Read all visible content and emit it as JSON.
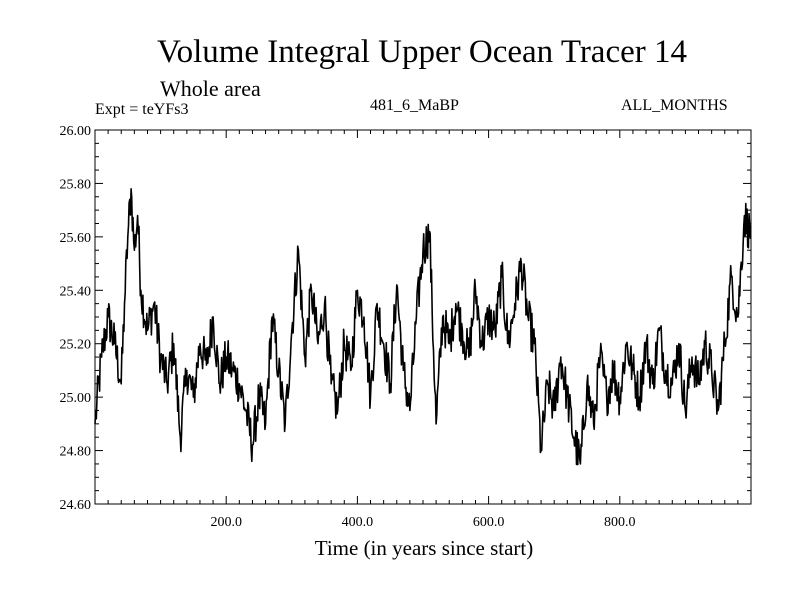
{
  "chart_data": {
    "type": "line",
    "title": "Volume Integral Upper Ocean Tracer 14",
    "subtitle": "Whole area",
    "experiment_label": "Expt = teYFs3",
    "run_label": "481_6_MaBP",
    "months_label": "ALL_MONTHS",
    "xlabel": "Time (in years since start)",
    "ylabel": "",
    "xlim": [
      0,
      1000
    ],
    "ylim": [
      24.6,
      26.0
    ],
    "x_ticks": [
      200,
      400,
      600,
      800
    ],
    "x_tick_labels": [
      "200.0",
      "400.0",
      "600.0",
      "800.0"
    ],
    "y_ticks": [
      24.6,
      24.8,
      25.0,
      25.2,
      25.4,
      25.6,
      25.8,
      26.0
    ],
    "y_tick_labels": [
      "24.60",
      "24.80",
      "25.00",
      "25.20",
      "25.40",
      "25.60",
      "25.80",
      "26.00"
    ],
    "grid": false,
    "series": [
      {
        "name": "Upper Ocean Tracer 14",
        "x": [
          0,
          10,
          20,
          30,
          40,
          45,
          50,
          55,
          60,
          65,
          70,
          80,
          90,
          100,
          110,
          120,
          130,
          140,
          150,
          160,
          170,
          180,
          190,
          200,
          210,
          220,
          230,
          240,
          250,
          260,
          270,
          280,
          290,
          300,
          310,
          320,
          330,
          340,
          350,
          360,
          370,
          380,
          390,
          400,
          410,
          420,
          430,
          440,
          450,
          460,
          470,
          480,
          490,
          500,
          510,
          520,
          530,
          540,
          550,
          560,
          570,
          580,
          590,
          600,
          610,
          620,
          630,
          640,
          650,
          660,
          670,
          680,
          690,
          700,
          710,
          720,
          730,
          740,
          750,
          760,
          770,
          780,
          790,
          800,
          810,
          820,
          830,
          840,
          850,
          860,
          870,
          880,
          890,
          900,
          910,
          920,
          930,
          940,
          950,
          960,
          970,
          980,
          990,
          1000
        ],
        "values": [
          24.9,
          25.15,
          25.3,
          25.2,
          25.05,
          25.35,
          25.6,
          25.78,
          25.55,
          25.68,
          25.4,
          25.25,
          25.35,
          25.15,
          25.05,
          25.2,
          24.85,
          25.1,
          25.0,
          25.2,
          25.12,
          25.3,
          25.05,
          25.15,
          25.1,
          25.05,
          24.95,
          24.82,
          25.0,
          24.9,
          25.3,
          25.1,
          24.9,
          25.25,
          25.55,
          25.15,
          25.4,
          25.2,
          25.35,
          25.05,
          24.95,
          25.2,
          25.1,
          25.4,
          25.3,
          25.0,
          25.35,
          25.2,
          25.05,
          25.42,
          25.1,
          24.95,
          25.3,
          25.55,
          25.62,
          24.9,
          25.3,
          25.2,
          25.35,
          25.25,
          25.15,
          25.4,
          25.2,
          25.3,
          25.25,
          25.45,
          25.2,
          25.35,
          25.5,
          25.3,
          25.2,
          24.8,
          25.05,
          24.95,
          25.15,
          25.0,
          24.85,
          24.75,
          25.05,
          24.9,
          25.15,
          25.0,
          25.1,
          25.0,
          25.2,
          25.1,
          25.0,
          25.2,
          25.05,
          25.25,
          25.1,
          25.05,
          25.2,
          24.95,
          25.15,
          25.05,
          25.2,
          25.1,
          24.95,
          25.2,
          25.45,
          25.3,
          25.68,
          25.6
        ]
      }
    ]
  }
}
